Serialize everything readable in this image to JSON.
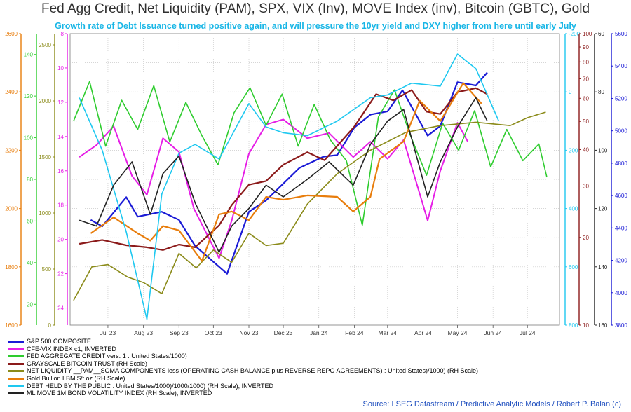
{
  "title": "Fed Agg Credit, Net Liquidity (PAM), SPX, VIX (Inv), MOVE Index (inv), Bitcoin (GBTC), Gold",
  "subtitle": "Growth rate of Debt Issuance turned positive again, and will pressure the 10yr yield and DXY higher from here until early July",
  "source": "Source: LSEG Datastream / Predictive Analytic Models / Robert P. Balan (c)",
  "chart_data": {
    "type": "line",
    "x_ticks": [
      "Jul 23",
      "Aug 23",
      "Sep 23",
      "Oct 23",
      "Nov 23",
      "Dec 23",
      "Jan 24",
      "Feb 24",
      "Mar 24",
      "Apr 24",
      "May 24",
      "Jun 24",
      "Jul 24"
    ],
    "x_range": [
      "2023-06-12",
      "2024-08-12"
    ],
    "grid": true,
    "legend_placement": "bottom",
    "axes": [
      {
        "id": "gold",
        "side": "left",
        "color": "#e87d0c",
        "min": 1600,
        "max": 2600,
        "ticks": [
          "1600",
          "1800",
          "2000",
          "2200",
          "2400",
          "2600"
        ]
      },
      {
        "id": "fedcredit",
        "side": "left",
        "color": "#2ecc2e",
        "min": 10,
        "max": 150,
        "ticks": [
          "20",
          "40",
          "60",
          "80",
          "100",
          "120",
          "140"
        ]
      },
      {
        "id": "liquidity",
        "side": "left",
        "color": "#8b8b1a",
        "min": 0,
        "max": 2600,
        "ticks": [
          "0",
          "500",
          "1000",
          "1500",
          "2000",
          "2500"
        ]
      },
      {
        "id": "vix",
        "side": "left",
        "color": "#e61ee6",
        "min": 8,
        "max": 25,
        "inverted": true,
        "ticks": [
          "8",
          "10",
          "12",
          "14",
          "16",
          "18",
          "20",
          "22",
          "24"
        ]
      },
      {
        "id": "debt",
        "side": "right",
        "color": "#1ec8f0",
        "min": -200,
        "max": 800,
        "inverted": true,
        "ticks": [
          "-200",
          "0",
          "200",
          "400",
          "600",
          "800"
        ]
      },
      {
        "id": "gbtc",
        "side": "right",
        "color": "#8b1a1a",
        "scale": "log",
        "min": 10,
        "max": 100,
        "ticks": [
          "10",
          "20",
          "30",
          "40",
          "50",
          "60",
          "70",
          "80",
          "90",
          "100"
        ]
      },
      {
        "id": "move",
        "side": "right",
        "color": "#222222",
        "min": 60,
        "max": 160,
        "inverted": true,
        "ticks": [
          "60",
          "80",
          "100",
          "120",
          "140",
          "160"
        ]
      },
      {
        "id": "spx",
        "side": "right",
        "color": "#1a1ad6",
        "min": 3800,
        "max": 5600,
        "ticks": [
          "3800",
          "4000",
          "4200",
          "4400",
          "4600",
          "4800",
          "5000",
          "5200",
          "5400",
          "5600"
        ]
      }
    ],
    "series": [
      {
        "name": "S&P 500 COMPOSITE",
        "axis": "spx",
        "color": "#1a1ad6",
        "width": 2.2,
        "points": [
          [
            "2023-06-30",
            4450
          ],
          [
            "2023-07-10",
            4410
          ],
          [
            "2023-07-31",
            4590
          ],
          [
            "2023-08-10",
            4470
          ],
          [
            "2023-08-31",
            4500
          ],
          [
            "2023-09-15",
            4450
          ],
          [
            "2023-09-29",
            4290
          ],
          [
            "2023-10-27",
            4117
          ],
          [
            "2023-11-15",
            4500
          ],
          [
            "2023-11-30",
            4570
          ],
          [
            "2023-12-29",
            4770
          ],
          [
            "2024-01-19",
            4840
          ],
          [
            "2024-01-31",
            4850
          ],
          [
            "2024-02-15",
            5020
          ],
          [
            "2024-02-29",
            5100
          ],
          [
            "2024-03-15",
            5120
          ],
          [
            "2024-03-28",
            5250
          ],
          [
            "2024-04-19",
            4970
          ],
          [
            "2024-04-30",
            5030
          ],
          [
            "2024-05-15",
            5300
          ],
          [
            "2024-05-31",
            5280
          ],
          [
            "2024-06-10",
            5360
          ]
        ]
      },
      {
        "name": "CFE-VIX INDEX c1, INVERTED",
        "axis": "vix",
        "color": "#e61ee6",
        "width": 2,
        "points": [
          [
            "2023-06-20",
            15.2
          ],
          [
            "2023-07-05",
            14.5
          ],
          [
            "2023-07-20",
            13.4
          ],
          [
            "2023-08-05",
            16.3
          ],
          [
            "2023-08-18",
            17.4
          ],
          [
            "2023-09-01",
            14.1
          ],
          [
            "2023-09-15",
            14.9
          ],
          [
            "2023-09-28",
            18.2
          ],
          [
            "2023-10-20",
            21.1
          ],
          [
            "2023-10-31",
            18.9
          ],
          [
            "2023-11-15",
            15.0
          ],
          [
            "2023-11-30",
            13.3
          ],
          [
            "2023-12-15",
            13.0
          ],
          [
            "2024-01-05",
            14.1
          ],
          [
            "2024-01-24",
            13.8
          ],
          [
            "2024-02-14",
            15.2
          ],
          [
            "2024-02-29",
            14.3
          ],
          [
            "2024-03-15",
            15.3
          ],
          [
            "2024-03-29",
            14.2
          ],
          [
            "2024-04-19",
            18.9
          ],
          [
            "2024-04-30",
            16.0
          ],
          [
            "2024-05-15",
            13.2
          ],
          [
            "2024-05-24",
            14.3
          ]
        ]
      },
      {
        "name": "FED AGGREGATE CREDIT vers. 1 : United States/1000)",
        "axis": "fedcredit",
        "color": "#2ecc2e",
        "width": 1.6,
        "points": [
          [
            "2023-06-15",
            108
          ],
          [
            "2023-06-29",
            127
          ],
          [
            "2023-07-13",
            96
          ],
          [
            "2023-07-27",
            118
          ],
          [
            "2023-08-10",
            104
          ],
          [
            "2023-08-24",
            125
          ],
          [
            "2023-09-07",
            98
          ],
          [
            "2023-09-21",
            117
          ],
          [
            "2023-10-05",
            101
          ],
          [
            "2023-10-19",
            87
          ],
          [
            "2023-11-02",
            112
          ],
          [
            "2023-11-16",
            124
          ],
          [
            "2023-11-30",
            106
          ],
          [
            "2023-12-14",
            121
          ],
          [
            "2023-12-28",
            96
          ],
          [
            "2024-01-11",
            116
          ],
          [
            "2024-01-25",
            99
          ],
          [
            "2024-02-08",
            89
          ],
          [
            "2024-02-22",
            58
          ],
          [
            "2024-03-07",
            110
          ],
          [
            "2024-03-21",
            123
          ],
          [
            "2024-04-04",
            101
          ],
          [
            "2024-04-18",
            82
          ],
          [
            "2024-05-02",
            107
          ],
          [
            "2024-05-16",
            94
          ],
          [
            "2024-05-30",
            113
          ],
          [
            "2024-06-13",
            86
          ],
          [
            "2024-06-27",
            104
          ],
          [
            "2024-07-11",
            89
          ],
          [
            "2024-07-25",
            97
          ],
          [
            "2024-08-01",
            81
          ]
        ]
      },
      {
        "name": "GRAYSCALE BITCOIN TRUST (RH Scale)",
        "axis": "gbtc",
        "color": "#8b1a1a",
        "width": 2.2,
        "points": [
          [
            "2023-06-20",
            19.0
          ],
          [
            "2023-07-10",
            19.6
          ],
          [
            "2023-07-31",
            18.8
          ],
          [
            "2023-08-18",
            18.5
          ],
          [
            "2023-09-01",
            18.1
          ],
          [
            "2023-09-15",
            18.9
          ],
          [
            "2023-09-29",
            18.5
          ],
          [
            "2023-10-20",
            22.0
          ],
          [
            "2023-10-31",
            25.8
          ],
          [
            "2023-11-15",
            30.3
          ],
          [
            "2023-11-30",
            31.2
          ],
          [
            "2023-12-15",
            35.5
          ],
          [
            "2024-01-05",
            39.2
          ],
          [
            "2024-01-20",
            36.8
          ],
          [
            "2024-02-15",
            48.0
          ],
          [
            "2024-03-05",
            62.0
          ],
          [
            "2024-03-20",
            59.0
          ],
          [
            "2024-04-05",
            64.0
          ],
          [
            "2024-04-18",
            54.0
          ],
          [
            "2024-04-30",
            53.0
          ],
          [
            "2024-05-15",
            63.0
          ],
          [
            "2024-05-31",
            65.0
          ],
          [
            "2024-06-10",
            62.0
          ]
        ]
      },
      {
        "name": "NET LIQUIDITY __PAM__SOMA COMPONENTS less (OPERATING CASH BALANCE plus REVERSE REPO AGREEMENTS) : United States)/1000) (RH Scale)",
        "axis": "liquidity",
        "color": "#8b8b1a",
        "width": 1.6,
        "points": [
          [
            "2023-06-15",
            220
          ],
          [
            "2023-07-01",
            520
          ],
          [
            "2023-07-15",
            540
          ],
          [
            "2023-08-01",
            430
          ],
          [
            "2023-08-15",
            380
          ],
          [
            "2023-08-31",
            280
          ],
          [
            "2023-09-15",
            640
          ],
          [
            "2023-09-30",
            510
          ],
          [
            "2023-10-15",
            670
          ],
          [
            "2023-10-31",
            560
          ],
          [
            "2023-11-15",
            820
          ],
          [
            "2023-11-30",
            710
          ],
          [
            "2023-12-15",
            730
          ],
          [
            "2024-01-05",
            1080
          ],
          [
            "2024-01-31",
            1350
          ],
          [
            "2024-02-29",
            1560
          ],
          [
            "2024-03-31",
            1720
          ],
          [
            "2024-04-30",
            1780
          ],
          [
            "2024-05-31",
            1810
          ],
          [
            "2024-06-30",
            1780
          ],
          [
            "2024-07-15",
            1850
          ],
          [
            "2024-07-31",
            1900
          ]
        ]
      },
      {
        "name": "Gold Bullion LBM $/t oz (RH Scale)",
        "axis": "gold",
        "color": "#e87d0c",
        "width": 2.2,
        "points": [
          [
            "2023-06-30",
            1915
          ],
          [
            "2023-07-20",
            1970
          ],
          [
            "2023-08-10",
            1915
          ],
          [
            "2023-08-21",
            1890
          ],
          [
            "2023-09-01",
            1940
          ],
          [
            "2023-09-15",
            1925
          ],
          [
            "2023-10-05",
            1820
          ],
          [
            "2023-10-20",
            1980
          ],
          [
            "2023-10-31",
            1990
          ],
          [
            "2023-11-15",
            1960
          ],
          [
            "2023-11-30",
            2040
          ],
          [
            "2023-12-15",
            2030
          ],
          [
            "2024-01-05",
            2045
          ],
          [
            "2024-01-31",
            2040
          ],
          [
            "2024-02-14",
            1990
          ],
          [
            "2024-02-29",
            2040
          ],
          [
            "2024-03-08",
            2170
          ],
          [
            "2024-03-29",
            2230
          ],
          [
            "2024-04-12",
            2370
          ],
          [
            "2024-04-30",
            2300
          ],
          [
            "2024-05-20",
            2430
          ],
          [
            "2024-06-05",
            2360
          ]
        ]
      },
      {
        "name": "DEBT HELD BY THE PUBLIC : United States/1000)/1000/1000) (RH Scale), INVERTED",
        "axis": "debt",
        "color": "#1ec8f0",
        "width": 1.6,
        "points": [
          [
            "2023-06-20",
            20
          ],
          [
            "2023-07-10",
            200
          ],
          [
            "2023-07-31",
            480
          ],
          [
            "2023-08-18",
            780
          ],
          [
            "2023-08-31",
            350
          ],
          [
            "2023-09-15",
            210
          ],
          [
            "2023-09-29",
            180
          ],
          [
            "2023-10-20",
            230
          ],
          [
            "2023-11-15",
            40
          ],
          [
            "2023-11-30",
            120
          ],
          [
            "2023-12-15",
            140
          ],
          [
            "2024-01-05",
            150
          ],
          [
            "2024-01-31",
            100
          ],
          [
            "2024-02-29",
            20
          ],
          [
            "2024-03-15",
            10
          ],
          [
            "2024-04-05",
            -30
          ],
          [
            "2024-04-30",
            -20
          ],
          [
            "2024-05-15",
            -130
          ],
          [
            "2024-05-31",
            -80
          ],
          [
            "2024-06-10",
            10
          ],
          [
            "2024-06-20",
            100
          ]
        ]
      },
      {
        "name": "ML MOVE 1M BOND VOLATILITY INDEX (RH Scale), INVERTED",
        "axis": "move",
        "color": "#222222",
        "width": 1.6,
        "points": [
          [
            "2023-06-20",
            124
          ],
          [
            "2023-07-05",
            126
          ],
          [
            "2023-07-20",
            112
          ],
          [
            "2023-08-05",
            104
          ],
          [
            "2023-08-21",
            122
          ],
          [
            "2023-09-01",
            108
          ],
          [
            "2023-09-15",
            102
          ],
          [
            "2023-09-29",
            118
          ],
          [
            "2023-10-20",
            135
          ],
          [
            "2023-10-31",
            126
          ],
          [
            "2023-11-15",
            120
          ],
          [
            "2023-11-30",
            112
          ],
          [
            "2023-12-15",
            116
          ],
          [
            "2024-01-05",
            110
          ],
          [
            "2024-01-24",
            104
          ],
          [
            "2024-02-14",
            112
          ],
          [
            "2024-02-29",
            98
          ],
          [
            "2024-03-15",
            90
          ],
          [
            "2024-03-29",
            86
          ],
          [
            "2024-04-19",
            116
          ],
          [
            "2024-04-30",
            104
          ],
          [
            "2024-05-15",
            92
          ],
          [
            "2024-05-31",
            82
          ],
          [
            "2024-06-10",
            90
          ]
        ]
      }
    ]
  }
}
